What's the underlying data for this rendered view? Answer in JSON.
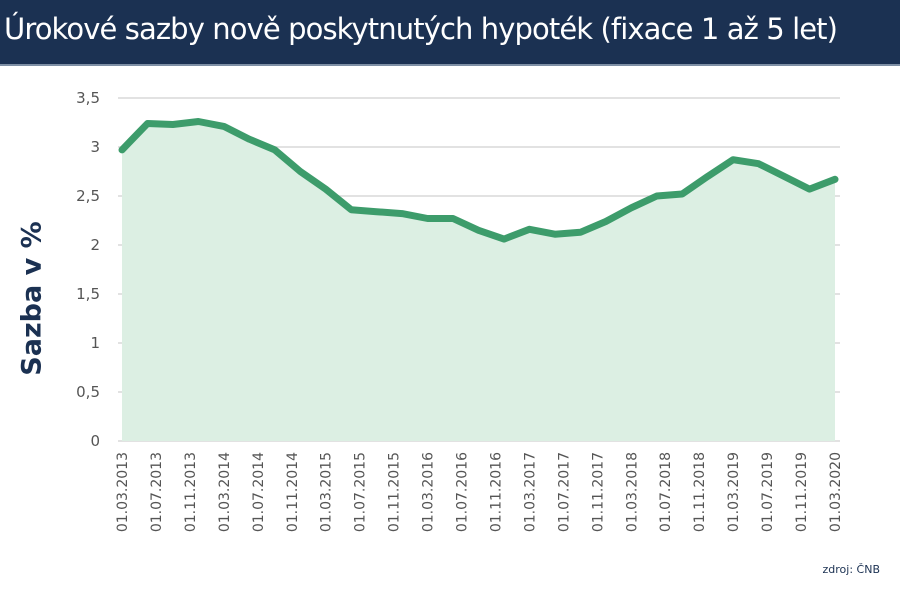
{
  "header": {
    "title": "Úrokové sazby nově poskytnutých hypoték (fixace 1 až 5 let)"
  },
  "source": "zdroj: ČNB",
  "colors": {
    "header_bg": "#1b3152",
    "line": "#3d9c6b",
    "fill": "#dcefe3",
    "grid": "#d0d0d0",
    "axis_title": "#1b3152"
  },
  "chart_data": {
    "type": "area",
    "title": "Úrokové sazby nově poskytnutých hypoték (fixace 1 až 5 let)",
    "xlabel": "",
    "ylabel": "Sazba v %",
    "ylim": [
      0,
      3.5
    ],
    "yticks": [
      "0",
      "0,5",
      "1",
      "1,5",
      "2",
      "2,5",
      "3",
      "3,5"
    ],
    "grid": true,
    "legend": "none",
    "x_tick_labels": [
      "01.03.2013",
      "01.07.2013",
      "01.11.2013",
      "01.03.2014",
      "01.07.2014",
      "01.11.2014",
      "01.03.2015",
      "01.07.2015",
      "01.11.2015",
      "01.03.2016",
      "01.07.2016",
      "01.11.2016",
      "01.03.2017",
      "01.07.2017",
      "01.11.2017",
      "01.03.2018",
      "01.07.2018",
      "01.11.2018",
      "01.03.2019",
      "01.07.2019",
      "01.11.2019",
      "01.03.2020"
    ],
    "x": [
      "03/2013",
      "06/2013",
      "09/2013",
      "12/2013",
      "03/2014",
      "06/2014",
      "09/2014",
      "12/2014",
      "03/2015",
      "06/2015",
      "09/2015",
      "12/2015",
      "03/2016",
      "06/2016",
      "09/2016",
      "12/2016",
      "03/2017",
      "06/2017",
      "09/2017",
      "12/2017",
      "03/2018",
      "06/2018",
      "09/2018",
      "12/2018",
      "03/2019",
      "06/2019",
      "09/2019",
      "12/2019",
      "03/2020"
    ],
    "series": [
      {
        "name": "Sazba v %",
        "values": [
          2.97,
          3.24,
          3.23,
          3.26,
          3.21,
          3.08,
          2.97,
          2.75,
          2.57,
          2.36,
          2.34,
          2.32,
          2.27,
          2.27,
          2.15,
          2.06,
          2.16,
          2.11,
          2.13,
          2.24,
          2.38,
          2.5,
          2.52,
          2.7,
          2.87,
          2.83,
          2.7,
          2.57,
          2.67
        ]
      }
    ],
    "source": "zdroj: ČNB"
  }
}
